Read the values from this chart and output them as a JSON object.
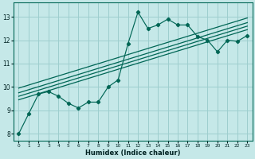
{
  "xlabel": "Humidex (Indice chaleur)",
  "xlim": [
    -0.5,
    23.5
  ],
  "ylim": [
    7.7,
    13.6
  ],
  "yticks": [
    8,
    9,
    10,
    11,
    12,
    13
  ],
  "xticks": [
    0,
    1,
    2,
    3,
    4,
    5,
    6,
    7,
    8,
    9,
    10,
    11,
    12,
    13,
    14,
    15,
    16,
    17,
    18,
    19,
    20,
    21,
    22,
    23
  ],
  "bg_color": "#c5e8e8",
  "line_color": "#006655",
  "grid_color": "#9dcece",
  "data_x": [
    0,
    1,
    2,
    3,
    4,
    5,
    6,
    7,
    8,
    9,
    10,
    11,
    12,
    13,
    14,
    15,
    16,
    17,
    18,
    19,
    20,
    21,
    22,
    23
  ],
  "data_y": [
    8.0,
    8.85,
    9.7,
    9.8,
    9.6,
    9.3,
    9.1,
    9.35,
    9.35,
    10.0,
    10.3,
    11.85,
    13.2,
    12.5,
    12.65,
    12.9,
    12.65,
    12.65,
    12.15,
    12.0,
    11.5,
    12.0,
    11.95,
    12.2
  ],
  "reg_lines": [
    {
      "x": [
        0,
        23
      ],
      "y": [
        9.45,
        12.45
      ]
    },
    {
      "x": [
        0,
        23
      ],
      "y": [
        9.6,
        12.6
      ]
    },
    {
      "x": [
        0,
        23
      ],
      "y": [
        9.75,
        12.75
      ]
    },
    {
      "x": [
        0,
        23
      ],
      "y": [
        9.95,
        12.95
      ]
    }
  ]
}
